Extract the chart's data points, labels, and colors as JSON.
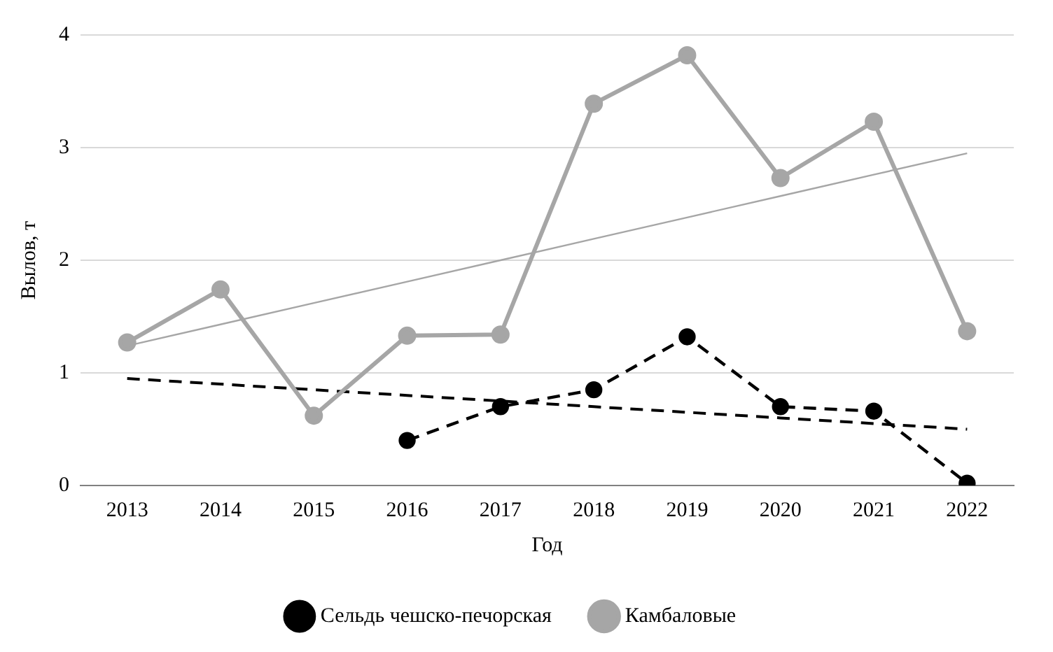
{
  "chart_data": {
    "type": "line",
    "xlabel": "Год",
    "ylabel": "Вылов, т",
    "categories": [
      "2013",
      "2014",
      "2015",
      "2016",
      "2017",
      "2018",
      "2019",
      "2020",
      "2021",
      "2022"
    ],
    "series": [
      {
        "name": "Сельдь чешско-печорская",
        "color": "#000000",
        "line_style": "dashed",
        "marker": "circle",
        "values": [
          null,
          null,
          null,
          0.4,
          0.7,
          0.85,
          1.32,
          0.7,
          0.66,
          0.02
        ]
      },
      {
        "name": "Камбаловые",
        "color": "#a6a6a6",
        "line_style": "solid",
        "marker": "circle",
        "values": [
          1.27,
          1.74,
          0.62,
          1.33,
          1.34,
          3.39,
          3.82,
          2.73,
          3.23,
          1.37
        ]
      },
      {
        "color": "#000000",
        "line_style": "dashed",
        "marker": "none",
        "values": [
          0.95,
          0.9,
          0.85,
          0.8,
          0.75,
          0.7,
          0.65,
          0.6,
          0.55,
          0.5
        ]
      },
      {
        "color": "#a6a6a6",
        "line_style": "solid",
        "marker": "none",
        "values": [
          1.24,
          1.43,
          1.62,
          1.81,
          2.0,
          2.19,
          2.38,
          2.57,
          2.76,
          2.95
        ]
      }
    ],
    "ylim": [
      0,
      4
    ],
    "yticks": [
      0,
      1,
      2,
      3,
      4
    ],
    "grid": "y",
    "legend": "bottom"
  }
}
